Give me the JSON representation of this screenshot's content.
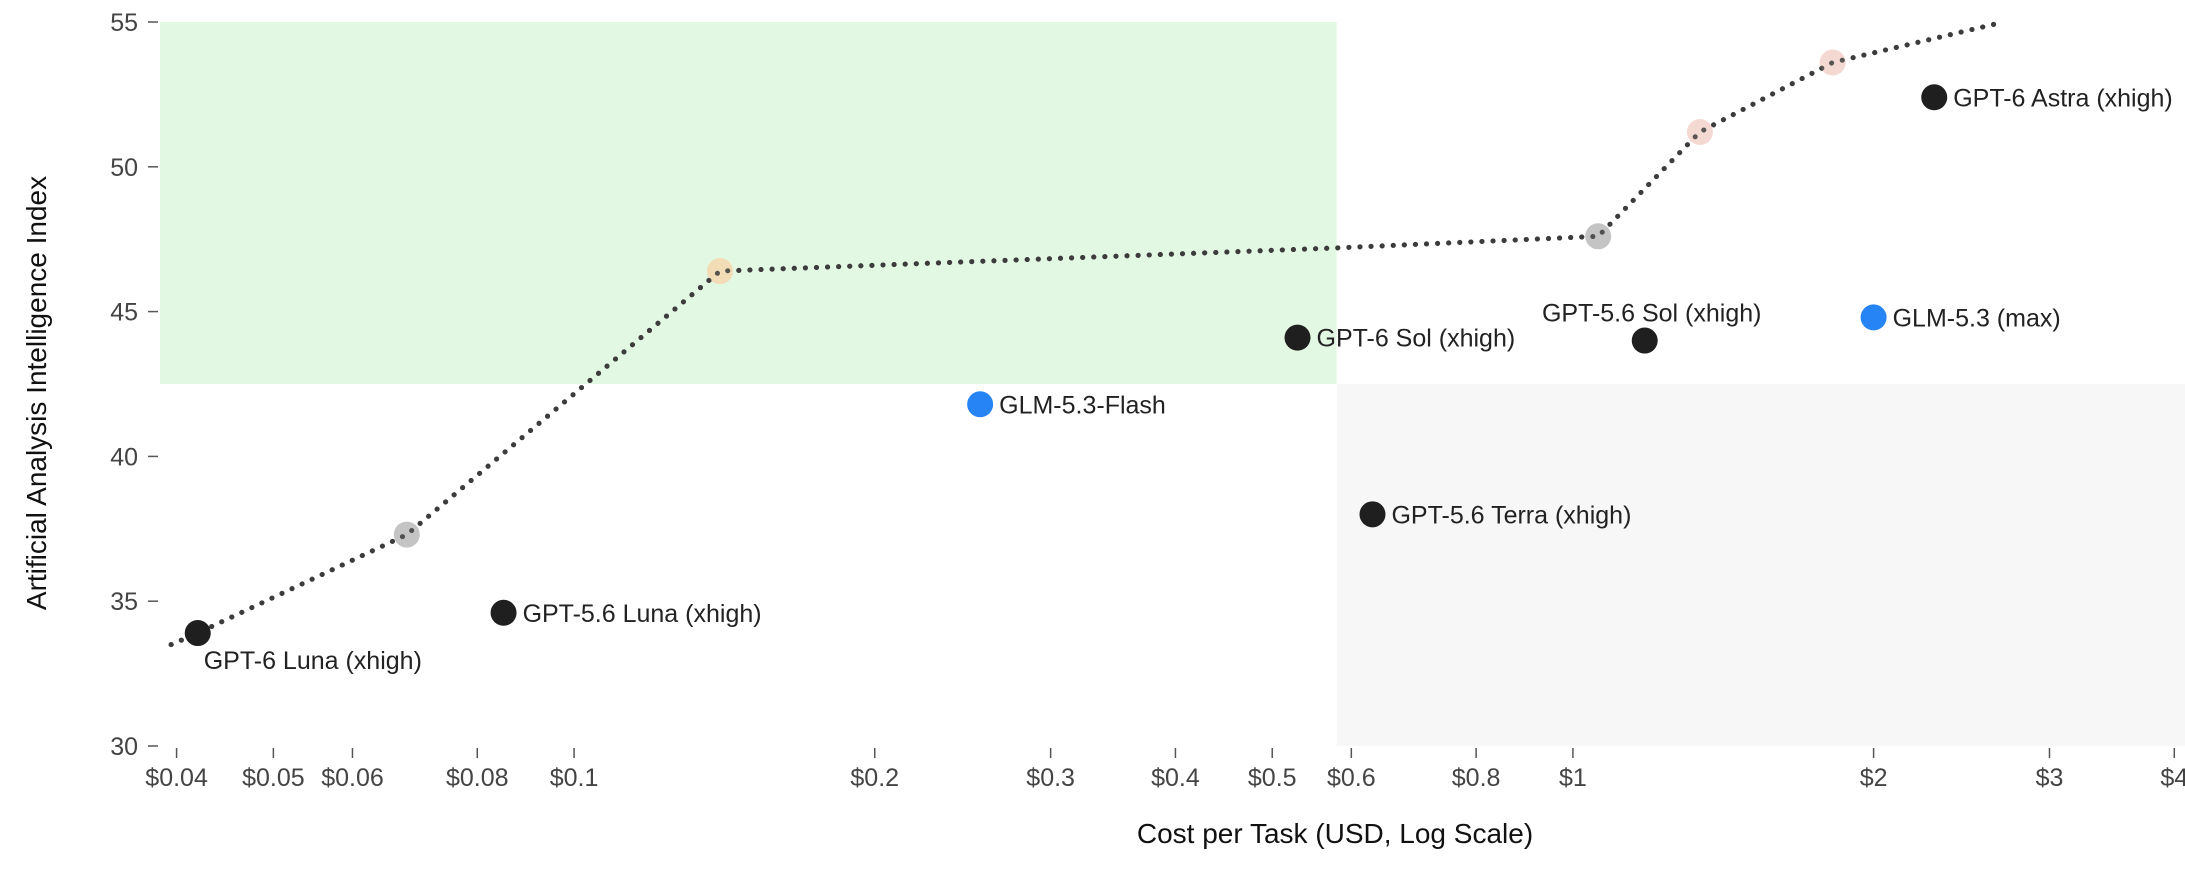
{
  "chart_data": {
    "type": "scatter",
    "title": "",
    "xlabel": "Cost per Task (USD, Log Scale)",
    "ylabel": "Artificial Analysis Intelligence Index",
    "x_scale": "log",
    "xlim": [
      0.0385,
      4.1
    ],
    "ylim": [
      30,
      55
    ],
    "grid": false,
    "legend": "none",
    "x_ticks": [
      {
        "value": 0.04,
        "label": "$0.04"
      },
      {
        "value": 0.05,
        "label": "$0.05"
      },
      {
        "value": 0.06,
        "label": "$0.06"
      },
      {
        "value": 0.08,
        "label": "$0.08"
      },
      {
        "value": 0.1,
        "label": "$0.1"
      },
      {
        "value": 0.2,
        "label": "$0.2"
      },
      {
        "value": 0.3,
        "label": "$0.3"
      },
      {
        "value": 0.4,
        "label": "$0.4"
      },
      {
        "value": 0.5,
        "label": "$0.5"
      },
      {
        "value": 0.6,
        "label": "$0.6"
      },
      {
        "value": 0.8,
        "label": "$0.8"
      },
      {
        "value": 1,
        "label": "$1"
      },
      {
        "value": 2,
        "label": "$2"
      },
      {
        "value": 3,
        "label": "$3"
      },
      {
        "value": 4,
        "label": "$4"
      }
    ],
    "y_ticks": [
      {
        "value": 30,
        "label": "30"
      },
      {
        "value": 35,
        "label": "35"
      },
      {
        "value": 40,
        "label": "40"
      },
      {
        "value": 45,
        "label": "45"
      },
      {
        "value": 50,
        "label": "50"
      },
      {
        "value": 55,
        "label": "55"
      }
    ],
    "regions": [
      {
        "name": "most-attractive-quadrant",
        "x": [
          0.0385,
          0.58
        ],
        "y": [
          42.5,
          55
        ],
        "color": "#e2f8e2"
      },
      {
        "name": "least-attractive-quadrant",
        "x": [
          0.58,
          4.1
        ],
        "y": [
          30,
          42.5
        ],
        "color": "#f7f7f7"
      }
    ],
    "points": [
      {
        "label": "GPT-6 Luna (xhigh)",
        "x": 0.042,
        "y": 33.9,
        "color": "#1f1f1f",
        "label_pos": "below-right"
      },
      {
        "label": "GPT-5.6 Luna (xhigh)",
        "x": 0.085,
        "y": 34.6,
        "color": "#1f1f1f",
        "label_pos": "right"
      },
      {
        "label": "GLM-5.3-Flash",
        "x": 0.255,
        "y": 41.8,
        "color": "#2684f5",
        "label_pos": "right"
      },
      {
        "label": "GPT-6 Sol (xhigh)",
        "x": 0.53,
        "y": 44.1,
        "color": "#1f1f1f",
        "label_pos": "right"
      },
      {
        "label": "GPT-5.6 Terra (xhigh)",
        "x": 0.63,
        "y": 38.0,
        "color": "#1f1f1f",
        "label_pos": "right"
      },
      {
        "label": "GPT-5.6 Sol (xhigh)",
        "x": 1.18,
        "y": 44.0,
        "color": "#1f1f1f",
        "label_pos": "above-left"
      },
      {
        "label": "GLM-5.3 (max)",
        "x": 2.0,
        "y": 44.8,
        "color": "#2684f5",
        "label_pos": "right"
      },
      {
        "label": "GPT-6 Astra (xhigh)",
        "x": 2.3,
        "y": 52.4,
        "color": "#1f1f1f",
        "label_pos": "right"
      }
    ],
    "frontier_markers": [
      {
        "x": 0.068,
        "y": 37.3,
        "color": "#c4c4c4"
      },
      {
        "x": 0.14,
        "y": 46.4,
        "color": "#f2dcb5"
      },
      {
        "x": 1.06,
        "y": 47.6,
        "color": "#c4c4c4"
      },
      {
        "x": 1.34,
        "y": 51.2,
        "color": "#f4d9d2"
      },
      {
        "x": 1.82,
        "y": 53.6,
        "color": "#f4d9d2"
      }
    ],
    "frontier_line": {
      "color": "#3c3c3c",
      "x": [
        0.0395,
        0.042,
        0.068,
        0.14,
        0.58,
        1.06,
        1.34,
        1.82,
        2.7
      ],
      "y": [
        33.5,
        33.9,
        37.3,
        46.4,
        47.2,
        47.6,
        51.2,
        53.6,
        55.0
      ]
    }
  }
}
